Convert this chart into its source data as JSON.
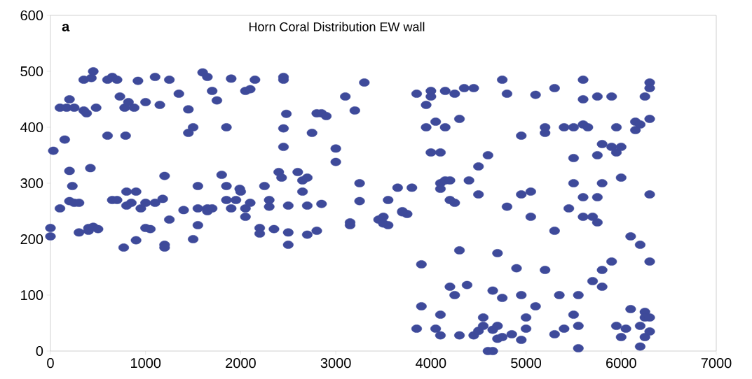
{
  "chart_data": {
    "type": "scatter",
    "title": "Horn Coral Distribution EW wall",
    "annotations": [
      "a"
    ],
    "xlim": [
      0,
      7000
    ],
    "ylim": [
      0,
      600
    ],
    "xticks": [
      0,
      1000,
      2000,
      3000,
      4000,
      5000,
      6000,
      7000
    ],
    "yticks": [
      0,
      100,
      200,
      300,
      400,
      500,
      600
    ],
    "grid": false,
    "marker": "circle",
    "series": [
      {
        "color": "#3e4a9a",
        "x": [
          0,
          0,
          30,
          100,
          100,
          150,
          170,
          200,
          200,
          200,
          230,
          250,
          250,
          300,
          300,
          350,
          350,
          380,
          400,
          400,
          420,
          430,
          450,
          450,
          480,
          500,
          600,
          600,
          650,
          650,
          700,
          700,
          730,
          770,
          780,
          790,
          800,
          800,
          820,
          850,
          880,
          900,
          900,
          920,
          950,
          1000,
          1000,
          1000,
          1050,
          1100,
          1100,
          1150,
          1180,
          1200,
          1200,
          1200,
          1250,
          1250,
          1350,
          1400,
          1450,
          1450,
          1500,
          1500,
          1550,
          1550,
          1550,
          1600,
          1650,
          1650,
          1650,
          1700,
          1700,
          1750,
          1800,
          1850,
          1850,
          1850,
          1900,
          1900,
          1950,
          1990,
          2000,
          2050,
          2050,
          2050,
          2100,
          2100,
          2150,
          2200,
          2200,
          2250,
          2300,
          2300,
          2350,
          2400,
          2430,
          2450,
          2450,
          2450,
          2450,
          2480,
          2500,
          2500,
          2500,
          2600,
          2650,
          2650,
          2700,
          2700,
          2700,
          2750,
          2800,
          2800,
          2850,
          2850,
          2900,
          3000,
          3000,
          3100,
          3150,
          3150,
          3200,
          3250,
          3250,
          3300,
          3450,
          3500,
          3500,
          3550,
          3550,
          3650,
          3700,
          3750,
          3700,
          3800,
          3850,
          3850,
          3900,
          3900,
          3950,
          3950,
          4000,
          4000,
          4000,
          4050,
          4050,
          4100,
          4100,
          4100,
          4100,
          4150,
          4150,
          4150,
          4100,
          4200,
          4200,
          4250,
          4250,
          4200,
          4250,
          4300,
          4300,
          4300,
          4350,
          4380,
          4400,
          4450,
          4450,
          4500,
          4500,
          4500,
          4550,
          4550,
          4600,
          4650,
          4600,
          4650,
          4650,
          4700,
          4700,
          4700,
          4750,
          4750,
          4750,
          4800,
          4800,
          4850,
          4900,
          4950,
          4950,
          4950,
          4950,
          5000,
          5000,
          5050,
          5050,
          5100,
          5100,
          5200,
          5200,
          5200,
          5300,
          5300,
          5300,
          5350,
          5400,
          5400,
          5450,
          5500,
          5500,
          5500,
          5500,
          5550,
          5550,
          5550,
          5600,
          5600,
          5600,
          5600,
          5600,
          5650,
          5700,
          5700,
          5750,
          5750,
          5750,
          5750,
          5800,
          5800,
          5800,
          5800,
          5900,
          5900,
          5900,
          5950,
          5950,
          5950,
          6000,
          6000,
          6000,
          6100,
          6100,
          6050,
          6150,
          6150,
          6200,
          6200,
          6200,
          6200,
          6250,
          6250,
          6250,
          6250,
          6300,
          6300,
          6300,
          6300,
          6300,
          6300,
          6300
        ],
        "values": [
          220,
          205,
          358,
          435,
          255,
          378,
          435,
          450,
          322,
          268,
          295,
          265,
          435,
          212,
          265,
          485,
          430,
          425,
          220,
          215,
          327,
          488,
          500,
          222,
          435,
          218,
          485,
          385,
          270,
          490,
          485,
          270,
          455,
          185,
          435,
          385,
          285,
          260,
          445,
          265,
          435,
          198,
          285,
          483,
          255,
          445,
          220,
          265,
          218,
          490,
          265,
          440,
          272,
          313,
          190,
          185,
          485,
          235,
          460,
          252,
          390,
          432,
          400,
          200,
          225,
          295,
          255,
          498,
          255,
          490,
          250,
          465,
          255,
          448,
          315,
          400,
          270,
          295,
          487,
          255,
          270,
          290,
          285,
          465,
          240,
          255,
          468,
          265,
          485,
          220,
          210,
          295,
          258,
          270,
          218,
          320,
          310,
          365,
          398,
          485,
          490,
          424,
          190,
          212,
          260,
          320,
          305,
          285,
          310,
          260,
          208,
          390,
          215,
          425,
          425,
          263,
          420,
          362,
          338,
          455,
          225,
          230,
          430,
          300,
          268,
          480,
          235,
          240,
          228,
          225,
          270,
          292,
          248,
          245,
          250,
          292,
          460,
          40,
          80,
          155,
          440,
          400,
          465,
          455,
          355,
          40,
          410,
          300,
          290,
          355,
          28,
          305,
          465,
          400,
          65,
          115,
          305,
          265,
          460,
          270,
          100,
          28,
          180,
          415,
          470,
          118,
          305,
          470,
          28,
          36,
          330,
          280,
          45,
          60,
          350,
          38,
          0,
          0,
          108,
          175,
          45,
          22,
          25,
          95,
          485,
          460,
          258,
          30,
          148,
          280,
          385,
          100,
          20,
          60,
          40,
          240,
          285,
          80,
          458,
          145,
          400,
          390,
          470,
          215,
          30,
          100,
          400,
          40,
          255,
          300,
          345,
          400,
          65,
          45,
          100,
          5,
          405,
          450,
          485,
          240,
          275,
          400,
          240,
          125,
          350,
          455,
          230,
          275,
          300,
          145,
          115,
          370,
          365,
          455,
          160,
          355,
          400,
          45,
          25,
          365,
          310,
          205,
          75,
          40,
          410,
          395,
          405,
          190,
          45,
          8,
          455,
          70,
          60,
          25,
          480,
          470,
          280,
          415,
          160,
          35,
          60
        ]
      }
    ]
  }
}
